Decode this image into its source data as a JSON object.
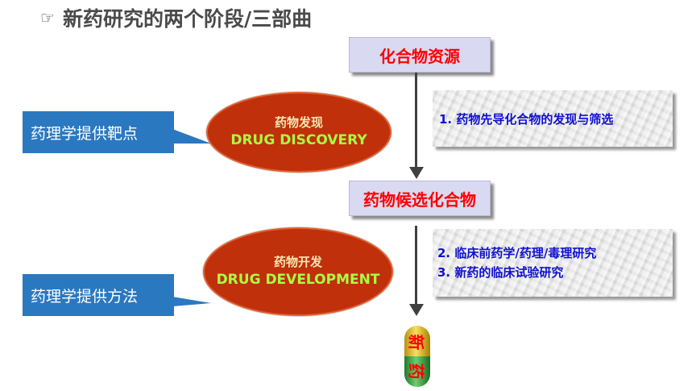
{
  "title": {
    "text": "新药研究的两个阶段/三部曲",
    "icon": "pointing-hand-icon"
  },
  "stages": {
    "source": "化合物资源",
    "candidate": "药物候选化合物"
  },
  "phases": {
    "discovery": {
      "cn": "药物发现",
      "en": "DRUG DISCOVERY"
    },
    "development": {
      "cn": "药物开发",
      "en": "DRUG DEVELOPMENT"
    }
  },
  "callouts": {
    "target": "药理学提供靶点",
    "method": "药理学提供方法"
  },
  "steps": {
    "step1": "1. 药物先导化合物的发现与筛选",
    "step2": "2. 临床前药学/药理/毒理研究",
    "step3": "3. 新药的临床试验研究"
  },
  "capsule": {
    "top": "新",
    "bottom": "药"
  },
  "colors": {
    "stage_text": "#ff0000",
    "stage_bg": "#d9d9f2",
    "ellipse_fill": "#c0300b",
    "english_text": "#a8ff40",
    "callout_bg": "#2a78c0",
    "step_text": "#1010d0",
    "capsule_top": "#e8c820",
    "capsule_bottom": "#3aa040"
  }
}
